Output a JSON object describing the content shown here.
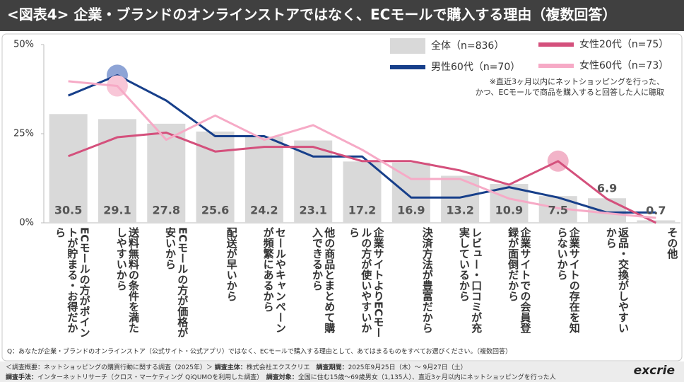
{
  "chart_data": {
    "type": "bar",
    "title": "<図表4> 企業・ブランドのオンラインストアではなく、ECモールで購入する理由（複数回答）",
    "categories": [
      "ECモールの方がポイントが貯まる・お得だから",
      "送料無料の条件を満たしやすいから",
      "ECモールの方が価格が安いから",
      "配送が早いから",
      "セールやキャンペーンが頻繁にあるから",
      "他の商品とまとめて購入できるから",
      "企業サイトよりECモールの方が使いやすいから",
      "決済方法が豊富だから",
      "レビュー・口コミが充実しているから",
      "企業サイトでの会員登録が面倒だから",
      "企業サイトの存在を知らないから",
      "返品・交換がしやすいから",
      "その他"
    ],
    "series": [
      {
        "name": "全体（n=836）",
        "type": "bar",
        "color": "#d9d9d9",
        "values": [
          30.5,
          29.1,
          27.8,
          25.6,
          24.2,
          23.1,
          17.2,
          16.9,
          13.2,
          10.9,
          7.5,
          6.9,
          0.7
        ]
      },
      {
        "name": "男性60代（n=70）",
        "type": "line",
        "color": "#173f8a",
        "highlight_index": 1,
        "highlight_color": "#8ea4d6",
        "values": [
          35.7,
          41.4,
          34.3,
          24.3,
          24.3,
          18.6,
          18.6,
          7.1,
          7.1,
          10.0,
          7.1,
          2.9,
          2.9
        ]
      },
      {
        "name": "女性20代（n=75）",
        "type": "line",
        "color": "#d4507c",
        "highlight_index": 10,
        "highlight_color": "#f2b3c8",
        "values": [
          18.7,
          24.0,
          25.3,
          20.0,
          21.3,
          21.3,
          17.3,
          17.3,
          14.7,
          10.7,
          17.3,
          6.7,
          0
        ]
      },
      {
        "name": "女性60代（n=73）",
        "type": "line",
        "color": "#f6aac6",
        "highlight_index": 1,
        "highlight_color": "#f8c6d7",
        "values": [
          39.7,
          38.4,
          23.3,
          30.1,
          23.3,
          27.4,
          20.5,
          12.3,
          12.3,
          6.8,
          4.1,
          2.7,
          1.4
        ]
      }
    ],
    "ylim": [
      0,
      50
    ],
    "yticks": [
      {
        "value": 0,
        "label": "0%"
      },
      {
        "value": 25,
        "label": "25%"
      },
      {
        "value": 50,
        "label": "50%"
      }
    ],
    "grid": false,
    "annotations": [
      "※直近3ヶ月以内にネットショッピングを行った、",
      "かつ、ECモールで商品を購入すると回答した人に聴取"
    ]
  },
  "question": "Q：あなたが企業・ブランドのオンラインストア（公式サイト・公式アプリ）ではなく、ECモールで購入する理由として、あてはまるものをすべてお選びください。（複数回答）",
  "footer": {
    "overview": "＜調査概要：ネットショッピングの購買行動に関する調査（2025年）＞",
    "items": [
      {
        "label": "調査主体：",
        "text": "株式会社エクスクリエ"
      },
      {
        "label": "調査期間：",
        "text": "2025年9月25日（木）～ 9月27日（土）"
      },
      {
        "label": "調査手法：",
        "text": "インターネットリサーチ（クロス・マーケティング QiQUMOを利用した調査）"
      },
      {
        "label": "調査対象：",
        "text": "全国に住む15歳～69歳男女（1,135人）、直近3ヶ月以内にネットショッピングを行った人"
      }
    ],
    "logo": "excrie"
  }
}
